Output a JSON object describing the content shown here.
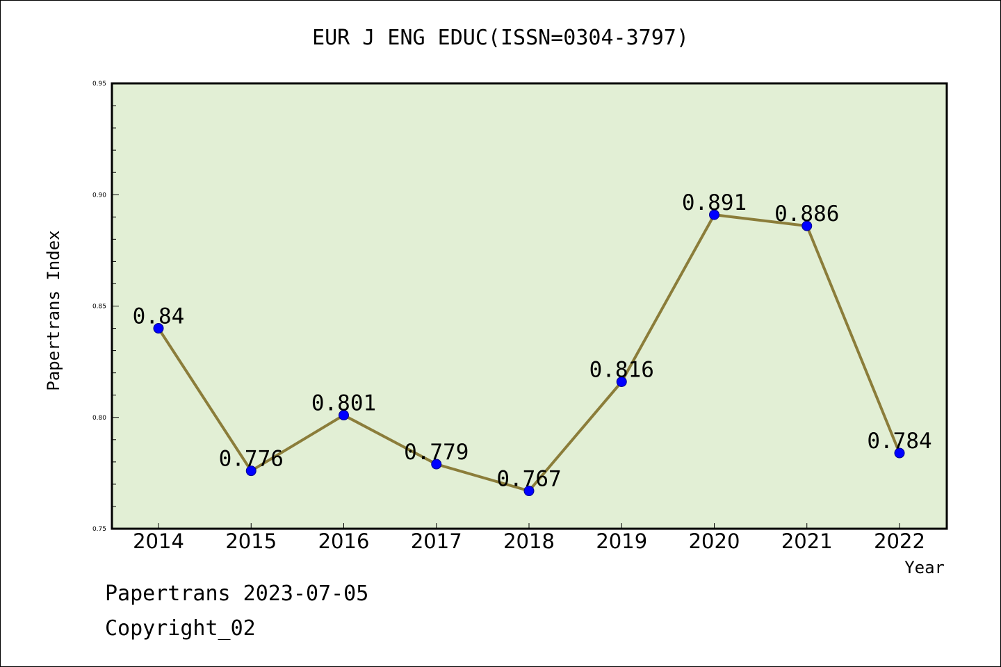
{
  "chart_data": {
    "type": "line",
    "title": "EUR J ENG EDUC(ISSN=0304-3797)",
    "xlabel": "Year",
    "ylabel": "Papertrans Index",
    "categories": [
      "2014",
      "2015",
      "2016",
      "2017",
      "2018",
      "2019",
      "2020",
      "2021",
      "2022"
    ],
    "series": [
      {
        "values": [
          0.84,
          0.776,
          0.801,
          0.779,
          0.767,
          0.816,
          0.891,
          0.886,
          0.784
        ],
        "labels": [
          "0.84",
          "0.776",
          "0.801",
          "0.779",
          "0.767",
          "0.816",
          "0.891",
          "0.886",
          "0.784"
        ]
      }
    ],
    "ylim": [
      0.75,
      0.95
    ],
    "yticks": [
      "0.75",
      "0.80",
      "0.85",
      "0.90",
      "0.95"
    ],
    "grid": false,
    "colors": {
      "plot_background": "#e2efd5",
      "line": "#8b7d3a",
      "marker": "#0000ff",
      "frame": "#000000"
    }
  },
  "footer": {
    "line1": "Papertrans 2023-07-05",
    "line2": "Copyright_02"
  }
}
